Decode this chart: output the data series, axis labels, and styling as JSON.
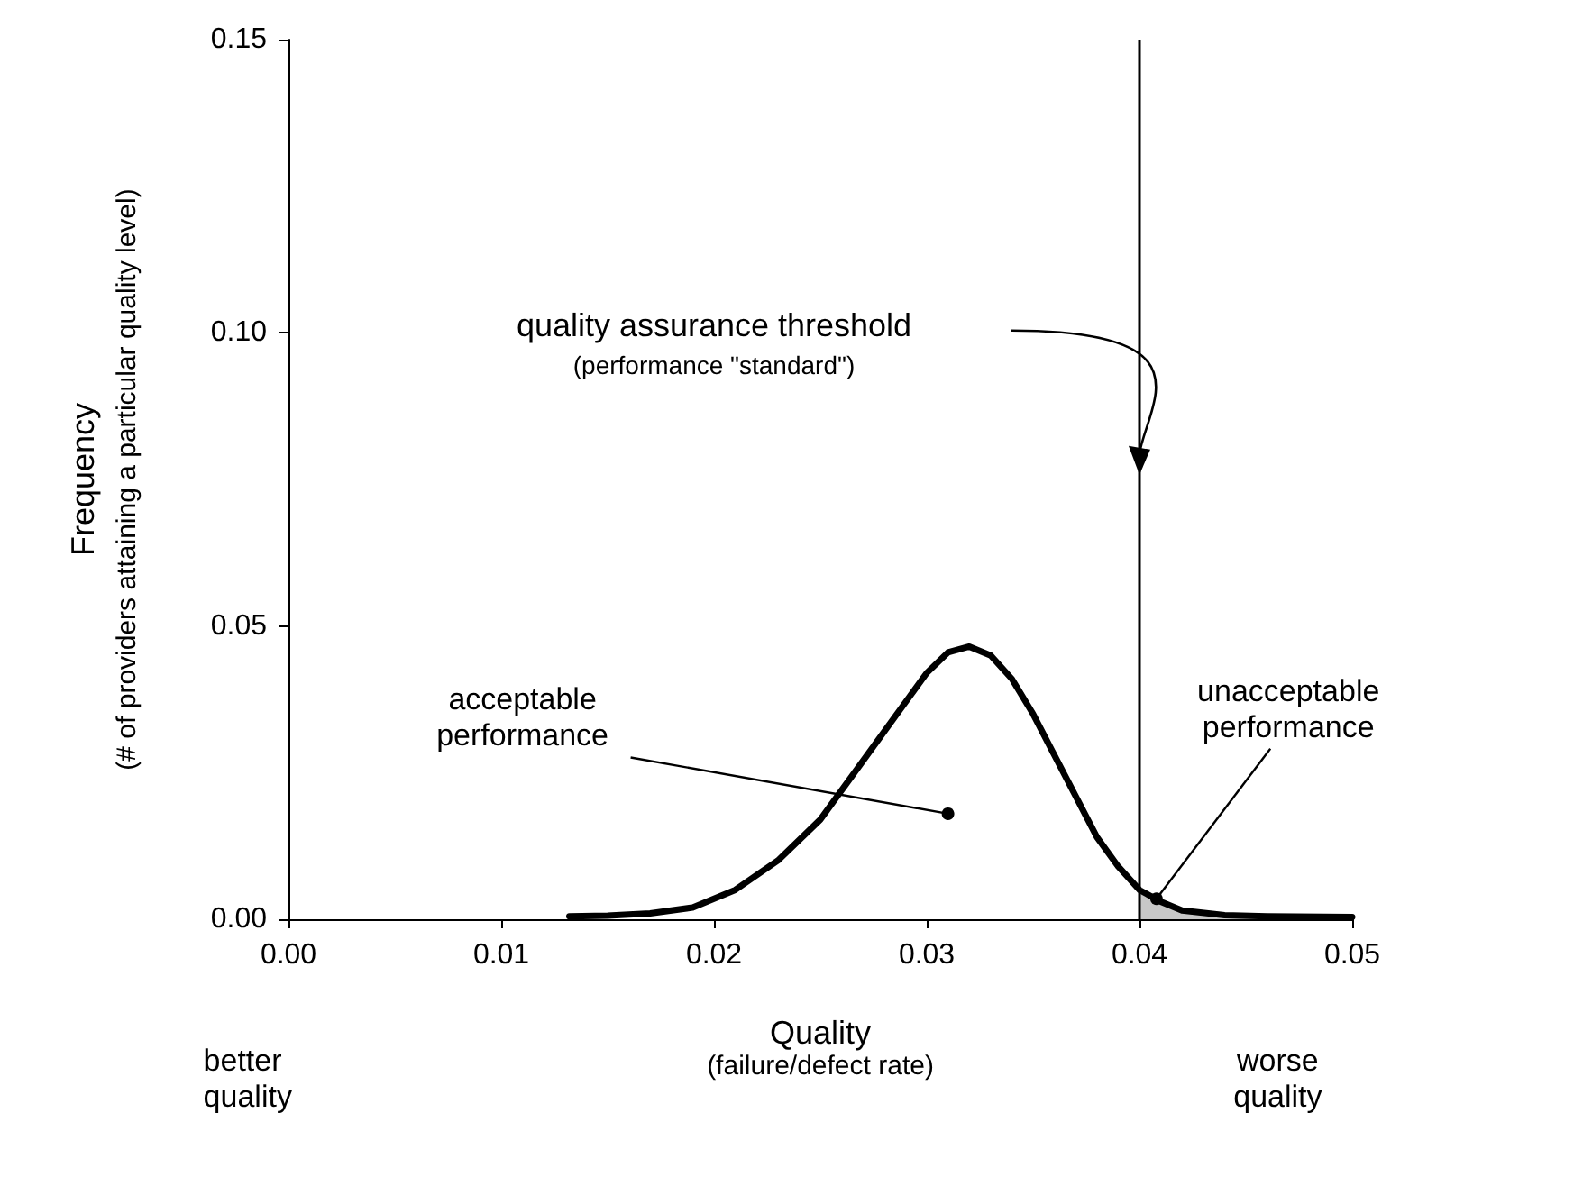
{
  "chart_data": {
    "type": "line",
    "xlabel": "Quality\n(failure/defect rate)",
    "ylabel": "Frequency\n(# of providers attaining a particular quality level)",
    "series": [
      {
        "color": "#000000",
        "x": [
          0.0132,
          0.015,
          0.017,
          0.019,
          0.021,
          0.023,
          0.025,
          0.027,
          0.029,
          0.03,
          0.031,
          0.032,
          0.033,
          0.034,
          0.035,
          0.036,
          0.037,
          0.038,
          0.039,
          0.04,
          0.041,
          0.042,
          0.044,
          0.046,
          0.05
        ],
        "values": [
          0.0005,
          0.0006,
          0.001,
          0.002,
          0.005,
          0.01,
          0.017,
          0.027,
          0.037,
          0.042,
          0.0455,
          0.0465,
          0.045,
          0.041,
          0.035,
          0.028,
          0.021,
          0.014,
          0.009,
          0.005,
          0.003,
          0.0015,
          0.0007,
          0.0005,
          0.0004
        ]
      },
      {
        "type": "area",
        "color": "#c8c8c8",
        "x": [
          0.04,
          0.041,
          0.042,
          0.044,
          0.046,
          0.05
        ],
        "values": [
          0.005,
          0.003,
          0.0015,
          0.0007,
          0.0005,
          0.0004
        ]
      }
    ],
    "xlim": [
      0,
      0.05
    ],
    "ylim": [
      0,
      0.15
    ],
    "xticks": [
      {
        "value": 0,
        "label": "0.00"
      },
      0.01,
      0.02,
      0.03,
      0.04,
      0.05
    ],
    "yticks": [
      {
        "value": 0,
        "label": "0.00"
      },
      0.05,
      {
        "value": 0.1,
        "label": "0.10"
      },
      0.15
    ],
    "ref_lines": [
      {
        "axis": "x",
        "value": 0.04,
        "color": "#000000"
      }
    ],
    "annotations": [
      "quality assurance threshold\n(performance \"standard\")",
      {
        "text": "acceptable\nperformance",
        "x": 0.031,
        "y": 0.018
      },
      {
        "text": "unacceptable\nperformance",
        "x": 0.0408,
        "y": 0.0035
      },
      "better\nquality",
      "worse\nquality"
    ],
    "grid": false,
    "marker": "none",
    "line_style": "solid"
  }
}
